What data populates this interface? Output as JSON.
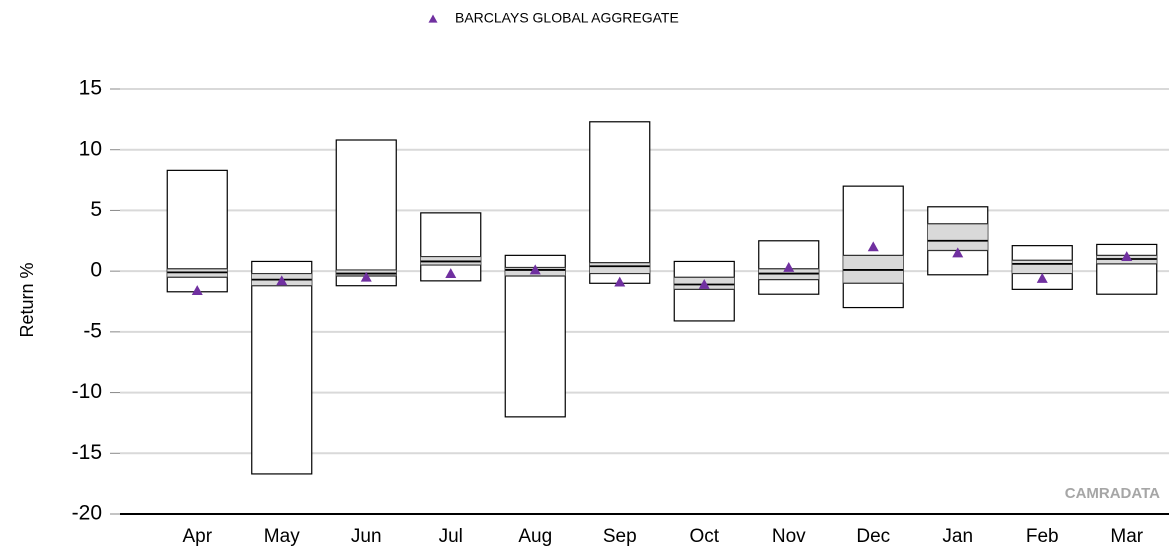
{
  "chart_data": {
    "type": "box",
    "ylabel": "Return %",
    "annotation": "CAMRADATA",
    "categories": [
      "Apr",
      "May",
      "Jun",
      "Jul",
      "Aug",
      "Sep",
      "Oct",
      "Nov",
      "Dec",
      "Jan",
      "Feb",
      "Mar"
    ],
    "boxes": [
      {
        "low": -1.7,
        "q1": -0.5,
        "median": -0.1,
        "q3": 0.2,
        "high": 8.3
      },
      {
        "low": -16.7,
        "q1": -1.2,
        "median": -0.7,
        "q3": -0.2,
        "high": 0.8
      },
      {
        "low": -1.2,
        "q1": -0.4,
        "median": -0.2,
        "q3": 0.1,
        "high": 10.8
      },
      {
        "low": -0.8,
        "q1": 0.5,
        "median": 0.8,
        "q3": 1.2,
        "high": 4.8
      },
      {
        "low": -12.0,
        "q1": -0.4,
        "median": 0.1,
        "q3": 0.3,
        "high": 1.3
      },
      {
        "low": -1.0,
        "q1": -0.2,
        "median": 0.4,
        "q3": 0.7,
        "high": 12.3
      },
      {
        "low": -4.1,
        "q1": -1.5,
        "median": -1.1,
        "q3": -0.5,
        "high": 0.8
      },
      {
        "low": -1.9,
        "q1": -0.7,
        "median": -0.2,
        "q3": 0.2,
        "high": 2.5
      },
      {
        "low": -3.0,
        "q1": -1.0,
        "median": 0.1,
        "q3": 1.3,
        "high": 7.0
      },
      {
        "low": -0.3,
        "q1": 1.7,
        "median": 2.5,
        "q3": 3.9,
        "high": 5.3
      },
      {
        "low": -1.5,
        "q1": -0.2,
        "median": 0.6,
        "q3": 0.9,
        "high": 2.1
      },
      {
        "low": -1.9,
        "q1": 0.6,
        "median": 1.0,
        "q3": 1.3,
        "high": 2.2
      }
    ],
    "box_color": "#d9d9d9",
    "series": [
      {
        "name": "BARCLAYS GLOBAL AGGREGATE",
        "color": "#7030a0",
        "values": [
          -1.6,
          -0.8,
          -0.5,
          -0.2,
          0.1,
          -0.9,
          -1.1,
          0.3,
          2.0,
          1.5,
          -0.6,
          1.2
        ]
      }
    ],
    "ylim": [
      -20,
      15
    ],
    "yticks": [
      -20,
      -15,
      -10,
      -5,
      0,
      5,
      10,
      15
    ],
    "grid": true
  }
}
